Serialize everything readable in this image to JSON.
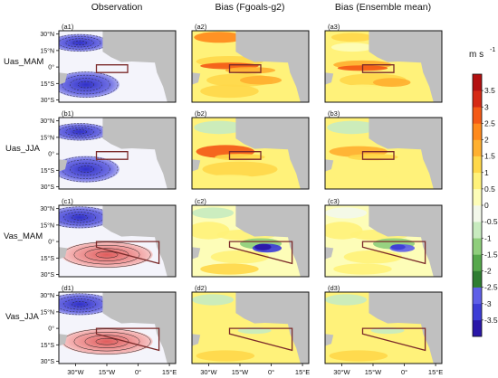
{
  "chart_data": {
    "type": "heatmap",
    "column_titles": [
      "Observation",
      "Bias (Fgoals-g2)",
      "Bias (Ensemble mean)"
    ],
    "row_labels": [
      "Uas_MAM",
      "Uas_JJA",
      "Vas_MAM",
      "Vas_JJA"
    ],
    "panel_labels": [
      [
        "(a1)",
        "(a2)",
        "(a3)"
      ],
      [
        "(b1)",
        "(b2)",
        "(b3)"
      ],
      [
        "(c1)",
        "(c2)",
        "(c3)"
      ],
      [
        "(d1)",
        "(d2)",
        "(d3)"
      ]
    ],
    "lat_ticks": [
      "30°N",
      "15°N",
      "0°",
      "15°S",
      "30°S"
    ],
    "lat_values": [
      30,
      15,
      0,
      -15,
      -30
    ],
    "lon_ticks": [
      "30°W",
      "15°W",
      "0°",
      "15°E"
    ],
    "lon_values": [
      -30,
      -15,
      0,
      15
    ],
    "lon_range": [
      -38,
      18
    ],
    "lat_range": [
      -32,
      33
    ],
    "colorbar": {
      "unit_label": "m s",
      "unit_exponent": "-1",
      "ticks": [
        "3.5",
        "3",
        "2.5",
        "2",
        "1.5",
        "1",
        "0.5",
        "0",
        "-0.5",
        "-1",
        "-1.5",
        "-2",
        "-2.5",
        "-3",
        "-3.5"
      ],
      "tick_values": [
        3.5,
        3,
        2.5,
        2,
        1.5,
        1,
        0.5,
        0,
        -0.5,
        -1,
        -1.5,
        -2,
        -2.5,
        -3,
        -3.5
      ],
      "range": [
        -4,
        4
      ],
      "colors_low_to_high": [
        "#2a17a8",
        "#3d3dd6",
        "#5f5fe8",
        "#2e7d32",
        "#56a84c",
        "#8fce7c",
        "#c8ebbf",
        "#f3f8ea",
        "#fdfdb8",
        "#fff27a",
        "#ffd84a",
        "#ffb030",
        "#ff8a1c",
        "#f45a16",
        "#d62a14",
        "#b31010"
      ]
    },
    "land_color": "#c0c0c0",
    "box_color": "#7b2a2a",
    "observation_colors": {
      "negative": "#4b4fd8",
      "positive": "#ef7f7f"
    }
  }
}
